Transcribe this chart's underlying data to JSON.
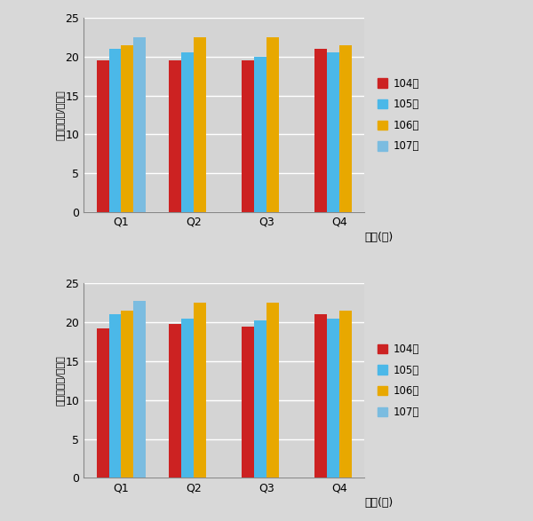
{
  "top_chart": {
    "ylabel": "單價（萬元/建坪）",
    "xlabel": "時間(季)",
    "categories": [
      "Q1",
      "Q2",
      "Q3",
      "Q4"
    ],
    "series": [
      {
        "label": "104年",
        "color": "#CC2222",
        "values": [
          19.5,
          19.5,
          19.5,
          21.0
        ]
      },
      {
        "label": "105年",
        "color": "#4BB8E8",
        "values": [
          21.0,
          20.5,
          20.0,
          20.5
        ]
      },
      {
        "label": "106年",
        "color": "#E8A800",
        "values": [
          21.5,
          22.5,
          22.5,
          21.5
        ]
      },
      {
        "label": "107年",
        "color": "#7BBCE0",
        "values": [
          22.5,
          null,
          null,
          null
        ]
      }
    ],
    "ylim": [
      0,
      25
    ],
    "yticks": [
      0,
      5,
      10,
      15,
      20,
      25
    ]
  },
  "bottom_chart": {
    "ylabel": "單價（萬元/建坪）",
    "xlabel": "時間(季)",
    "categories": [
      "Q1",
      "Q2",
      "Q3",
      "Q4"
    ],
    "series": [
      {
        "label": "104年",
        "color": "#CC2222",
        "values": [
          19.2,
          19.8,
          19.5,
          21.0
        ]
      },
      {
        "label": "105年",
        "color": "#4BB8E8",
        "values": [
          21.0,
          20.5,
          20.2,
          20.5
        ]
      },
      {
        "label": "106年",
        "color": "#E8A800",
        "values": [
          21.5,
          22.5,
          22.5,
          21.5
        ]
      },
      {
        "label": "107年",
        "color": "#7BBCE0",
        "values": [
          22.8,
          null,
          null,
          null
        ]
      }
    ],
    "ylim": [
      0,
      25
    ],
    "yticks": [
      0,
      5,
      10,
      15,
      20,
      25
    ]
  },
  "bg_color": "#D8D8D8",
  "plot_bg_color": "#D4D4D4",
  "bar_width": 0.17,
  "figsize": [
    6.0,
    5.87
  ],
  "dpi": 100
}
